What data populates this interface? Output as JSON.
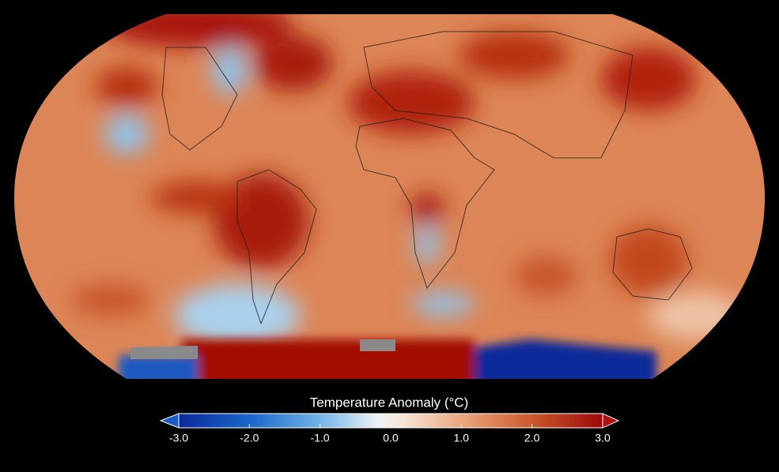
{
  "map": {
    "colorbar": {
      "title": "Temperature Anomaly (°C)",
      "lim": [
        -3,
        3
      ],
      "ticks": [
        {
          "value": -3,
          "label": "-3.0"
        },
        {
          "value": -2,
          "label": "-2.0"
        },
        {
          "value": -1,
          "label": "-1.0"
        },
        {
          "value": 0,
          "label": "0.0"
        },
        {
          "value": 1,
          "label": "1.0"
        },
        {
          "value": 2,
          "label": "2.0"
        },
        {
          "value": 3,
          "label": "3.0"
        }
      ]
    }
  }
}
